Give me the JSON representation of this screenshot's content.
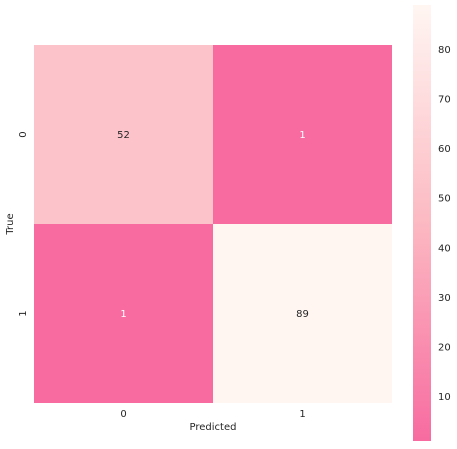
{
  "chart_data": {
    "type": "heatmap",
    "title": "",
    "xlabel": "Predicted",
    "ylabel": "True",
    "x_categories": [
      "0",
      "1"
    ],
    "y_categories": [
      "0",
      "1"
    ],
    "values": [
      [
        52,
        1
      ],
      [
        1,
        89
      ]
    ],
    "colorbar": {
      "min": 1,
      "max": 89,
      "ticks": [
        10,
        20,
        30,
        40,
        50,
        60,
        70,
        80
      ],
      "tick_labels": [
        "10",
        "20",
        "30",
        "40",
        "50",
        "60",
        "70",
        "80"
      ],
      "placement": "right"
    },
    "colors": {
      "low": "#f76ba0",
      "mid": "#fcb9c2",
      "high": "#fff6f2",
      "text_dark": "#262626",
      "text_light": "#ffffff"
    },
    "grid": false
  }
}
